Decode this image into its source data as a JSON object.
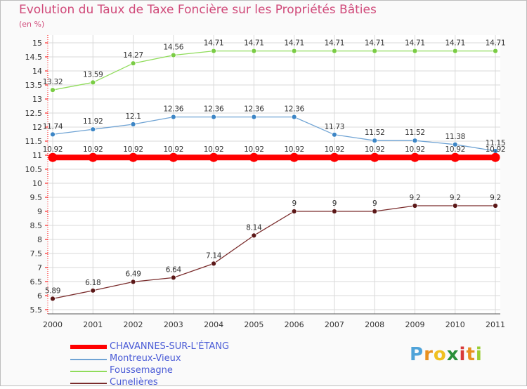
{
  "title": "Evolution du Taux de Taxe Foncière sur les Propriétés Bâties",
  "unit_label": "(en %)",
  "logo": {
    "text": "Proxiti",
    "letter_colors": [
      "#4fa3d9",
      "#e8901f",
      "#f0c020",
      "#2a8f3a",
      "#d83a3a",
      "#e8901f",
      "#9acd32"
    ]
  },
  "chart_data": {
    "type": "line",
    "title": "Evolution du Taux de Taxe Foncière sur les Propriétés Bâties",
    "ylabel": "(en %)",
    "xlabel": "",
    "x": [
      "2000",
      "2001",
      "2002",
      "2003",
      "2004",
      "2005",
      "2006",
      "2007",
      "2008",
      "2009",
      "2010",
      "2011"
    ],
    "ylim": [
      5.5,
      15
    ],
    "yticks": [
      "5.5",
      "6",
      "6.5",
      "7",
      "7.5",
      "8",
      "8.5",
      "9",
      "9.5",
      "10",
      "10.5",
      "11",
      "11.5",
      "12",
      "12.5",
      "13",
      "13.5",
      "14",
      "14.5",
      "15"
    ],
    "grid": true,
    "legend_position": "bottom-left",
    "series": [
      {
        "name": "CHAVANNES-SUR-L'ÉTANG",
        "color": "#ff0000",
        "point_color": "#ff0000",
        "emphasis": true,
        "values": [
          10.92,
          10.92,
          10.92,
          10.92,
          10.92,
          10.92,
          10.92,
          10.92,
          10.92,
          10.92,
          10.92,
          10.92
        ],
        "labels": [
          "10.92",
          "10.92",
          "10.92",
          "10.92",
          "10.92",
          "10.92",
          "10.92",
          "10.92",
          "10.92",
          "10.92",
          "10.92",
          "10.92"
        ]
      },
      {
        "name": "Montreux-Vieux",
        "color": "#6fa3d4",
        "point_color": "#3d86c6",
        "values": [
          11.74,
          11.92,
          12.1,
          12.36,
          12.36,
          12.36,
          12.36,
          11.73,
          11.52,
          11.52,
          11.38,
          11.15
        ],
        "labels": [
          "11.74",
          "11.92",
          "12.1",
          "12.36",
          "12.36",
          "12.36",
          "12.36",
          "11.73",
          "11.52",
          "11.52",
          "11.38",
          "11.15"
        ]
      },
      {
        "name": "Foussemagne",
        "color": "#8fdc5a",
        "point_color": "#7acc44",
        "values": [
          13.32,
          13.59,
          14.27,
          14.56,
          14.71,
          14.71,
          14.71,
          14.71,
          14.71,
          14.71,
          14.71,
          14.71
        ],
        "labels": [
          "13.32",
          "13.59",
          "14.27",
          "14.56",
          "14.71",
          "14.71",
          "14.71",
          "14.71",
          "14.71",
          "14.71",
          "14.71",
          "14.71"
        ]
      },
      {
        "name": "Cunelières",
        "color": "#7a2c2c",
        "point_color": "#5c1818",
        "values": [
          5.89,
          6.18,
          6.49,
          6.64,
          7.14,
          8.14,
          9,
          9,
          9,
          9.2,
          9.2,
          9.2
        ],
        "labels": [
          "5.89",
          "6.18",
          "6.49",
          "6.64",
          "7.14",
          "8.14",
          "9",
          "9",
          "9",
          "9.2",
          "9.2",
          "9.2"
        ]
      }
    ]
  }
}
